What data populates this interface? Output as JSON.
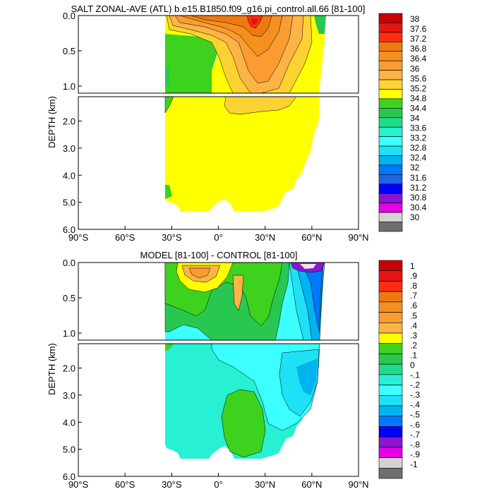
{
  "chart_data": [
    {
      "type": "heatmap",
      "title": "SALT ZONAL-AVE (ATL) b.e15.B1850.f09_g16.pi_control.all.66 [81-100]",
      "ylabel": "DEPTH (km)",
      "xlabel": "",
      "x_ticks": [
        "90°S",
        "60°S",
        "30°S",
        "0°",
        "30°N",
        "60°N",
        "90°N"
      ],
      "y_ticks_upper": [
        "0.0",
        "0.5",
        "1.0"
      ],
      "y_ticks_lower": [
        "2.0",
        "3.0",
        "4.0",
        "5.0",
        "6.0"
      ],
      "xlim": [
        -90,
        90
      ],
      "ylim_upper": [
        0,
        1.1
      ],
      "ylim_lower": [
        1.1,
        6.0
      ],
      "colorbar_labels": [
        "38",
        "37.6",
        "37.2",
        "36.8",
        "36.4",
        "36",
        "35.6",
        "35.2",
        "34.8",
        "34.4",
        "34",
        "33.6",
        "33.2",
        "32.8",
        "32.4",
        "32",
        "31.6",
        "31.2",
        "30.8",
        "30.4",
        "30"
      ],
      "colors": [
        "#c80000",
        "#e61414",
        "#ff2d12",
        "#f07810",
        "#f5901e",
        "#fa9c32",
        "#fcb446",
        "#fcd232",
        "#ffff00",
        "#3cd21e",
        "#28c850",
        "#1edc8c",
        "#28f0d2",
        "#3cffff",
        "#1ee1f5",
        "#00b4f0",
        "#0078ff",
        "#1e64e6",
        "#0000ff",
        "#8c14d2",
        "#e600e6",
        "#d2d2d2",
        "#6e6e6e"
      ]
    },
    {
      "type": "heatmap",
      "title": "MODEL [81-100] - CONTROL [81-100]",
      "ylabel": "DEPTH (km)",
      "xlabel": "",
      "x_ticks": [
        "90°S",
        "60°S",
        "30°S",
        "0°",
        "30°N",
        "60°N",
        "90°N"
      ],
      "y_ticks_upper": [
        "0.0",
        "0.5",
        "1.0"
      ],
      "y_ticks_lower": [
        "2.0",
        "3.0",
        "4.0",
        "5.0",
        "6.0"
      ],
      "xlim": [
        -90,
        90
      ],
      "ylim_upper": [
        0,
        1.1
      ],
      "ylim_lower": [
        1.1,
        6.0
      ],
      "colorbar_labels": [
        "1",
        ".9",
        ".8",
        ".7",
        ".6",
        ".5",
        ".4",
        ".3",
        ".2",
        ".1",
        "0",
        "-.1",
        "-.2",
        "-.3",
        "-.4",
        "-.5",
        "-.6",
        "-.7",
        "-.8",
        "-.9",
        "-1"
      ],
      "colors": [
        "#c80000",
        "#e61414",
        "#ff2d12",
        "#f07810",
        "#f5901e",
        "#fa9c32",
        "#fcb446",
        "#ffff00",
        "#3cd21e",
        "#28c850",
        "#1edc8c",
        "#28f0d2",
        "#3cffff",
        "#1ee1f5",
        "#00b4f0",
        "#0078ff",
        "#0000ff",
        "#8c14d2",
        "#e600e6",
        "#d2d2d2",
        "#6e6e6e"
      ]
    }
  ]
}
